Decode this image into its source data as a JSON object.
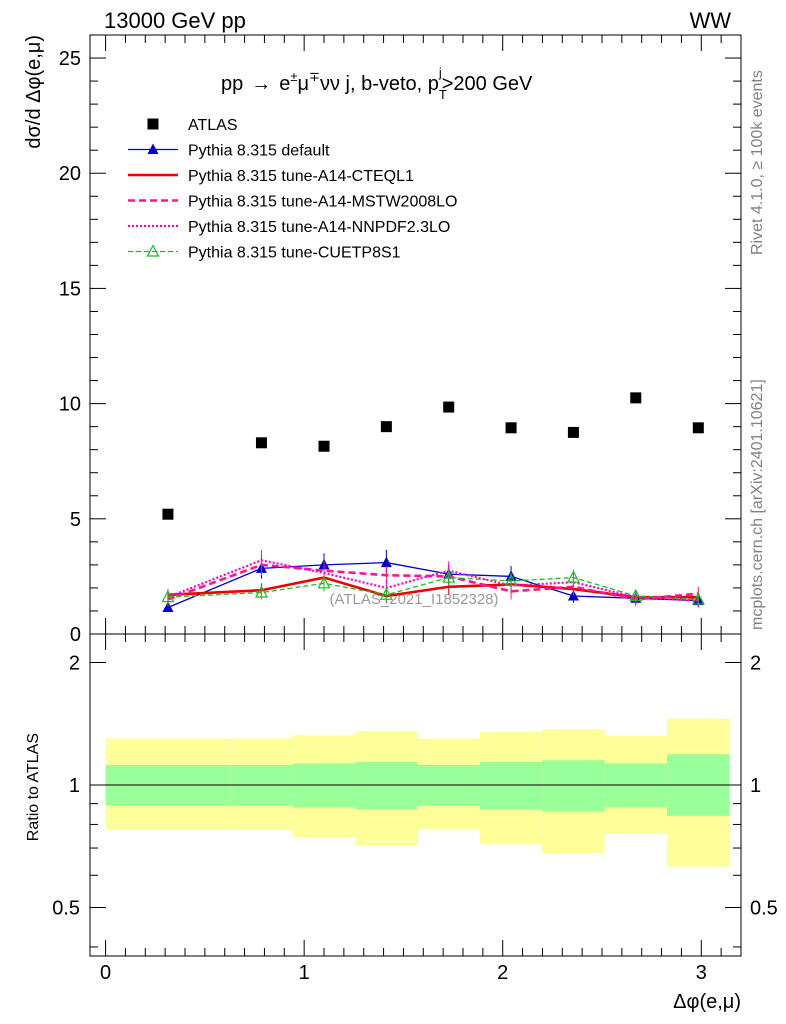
{
  "header": {
    "left": "13000 GeV pp",
    "right": "WW"
  },
  "side_labels": {
    "rivet": "Rivet 4.1.0, ≥ 100k events",
    "mcplots": "mcplots.cern.ch [arXiv:2401.10621]"
  },
  "watermark": "(ATLAS_2021_I1852328)",
  "colors": {
    "atlas": "#000000",
    "default": "#0000cc",
    "cteql1": "#ee0000",
    "mstw": "#ff1493",
    "nnpdf": "#ff00cc",
    "cuetp8s1": "#22bb22",
    "band_inner": "#99ff99",
    "band_outer": "#ffff99"
  },
  "chart_data": [
    {
      "type": "scatter",
      "title": "pp → e±μ∓νν j, b-veto, p_T^j>200 GeV",
      "title_parts": {
        "pp": "pp",
        "arrow": "→",
        "e": "e",
        "e_sup": "±",
        "mu": "μ",
        "mu_sup": "∓",
        "rest": "νν j, b-veto, p",
        "pt_sub": "T",
        "pt_sup": "j",
        "cut": ">200 GeV"
      },
      "ylabel": "dσ/d Δφ(e,μ)",
      "xlim": [
        -0.0785,
        3.2
      ],
      "ylim": [
        0,
        26
      ],
      "yticks": [
        {
          "v": 0,
          "label": "0"
        },
        {
          "v": 5,
          "label": "5"
        },
        {
          "v": 10,
          "label": "10"
        },
        {
          "v": 15,
          "label": "15"
        },
        {
          "v": 20,
          "label": "20"
        },
        {
          "v": 25,
          "label": "25"
        }
      ],
      "bin_edges": [
        0,
        0.628,
        0.942,
        1.257,
        1.571,
        1.885,
        2.199,
        2.513,
        2.827,
        3.142
      ],
      "x": [
        0.314,
        0.785,
        1.1,
        1.414,
        1.728,
        2.042,
        2.356,
        2.67,
        2.985
      ],
      "legend": [
        "ATLAS",
        "Pythia 8.315 default",
        "Pythia 8.315 tune-A14-CTEQL1",
        "Pythia 8.315 tune-A14-MSTW2008LO",
        "Pythia 8.315 tune-A14-NNPDF2.3LO",
        "Pythia 8.315 tune-CUETP8S1"
      ],
      "series": [
        {
          "name": "ATLAS",
          "key": "atlas",
          "values": [
            5.2,
            8.3,
            8.15,
            9.0,
            9.85,
            8.95,
            8.75,
            10.25,
            8.95
          ]
        },
        {
          "name": "Pythia 8.315 default",
          "key": "default",
          "values": [
            1.15,
            2.85,
            3.0,
            3.1,
            2.6,
            2.5,
            1.65,
            1.55,
            1.45
          ],
          "errors": [
            0.2,
            0.45,
            0.5,
            0.55,
            0.4,
            0.45,
            0.3,
            0.25,
            0.3
          ]
        },
        {
          "name": "Pythia 8.315 tune-A14-CTEQL1",
          "key": "cteql1",
          "values": [
            1.7,
            1.9,
            2.45,
            1.65,
            2.05,
            2.15,
            1.95,
            1.6,
            1.6
          ],
          "errors": [
            0.25,
            0.3,
            0.35,
            0.3,
            0.35,
            0.35,
            0.3,
            0.25,
            0.25
          ]
        },
        {
          "name": "Pythia 8.315 tune-A14-MSTW2008LO",
          "key": "mstw",
          "values": [
            1.5,
            3.0,
            2.75,
            2.55,
            2.5,
            1.85,
            2.05,
            1.5,
            1.75
          ],
          "errors": [
            0.3,
            0.45,
            0.4,
            0.4,
            0.4,
            0.35,
            0.35,
            0.3,
            0.3
          ]
        },
        {
          "name": "Pythia 8.315 tune-A14-NNPDF2.3LO",
          "key": "nnpdf",
          "values": [
            1.6,
            3.2,
            2.65,
            2.0,
            2.75,
            2.1,
            2.25,
            1.6,
            1.45
          ],
          "errors": [
            0.3,
            0.45,
            0.4,
            0.35,
            0.4,
            0.35,
            0.35,
            0.3,
            0.3
          ]
        },
        {
          "name": "Pythia 8.315 tune-CUETP8S1",
          "key": "cuetp8s1",
          "values": [
            1.6,
            1.8,
            2.2,
            1.7,
            2.45,
            2.3,
            2.45,
            1.65,
            1.5
          ],
          "errors": [
            0.25,
            0.3,
            0.35,
            0.3,
            0.35,
            0.35,
            0.35,
            0.25,
            0.25
          ]
        }
      ]
    },
    {
      "type": "area",
      "ylabel": "Ratio to ATLAS",
      "xlabel": "Δφ(e,μ)",
      "scale": "log",
      "xlim": [
        -0.0785,
        3.2
      ],
      "ylim": [
        0.38,
        2.35
      ],
      "xticks": [
        {
          "v": 0,
          "label": "0"
        },
        {
          "v": 1,
          "label": "1"
        },
        {
          "v": 2,
          "label": "2"
        },
        {
          "v": 3,
          "label": "3"
        }
      ],
      "yticks": [
        {
          "v": 0.5,
          "label": "0.5"
        },
        {
          "v": 1,
          "label": "1"
        },
        {
          "v": 2,
          "label": "2"
        }
      ],
      "reference_line": 1,
      "band_inner_lo": [
        0.89,
        0.89,
        0.88,
        0.87,
        0.89,
        0.87,
        0.86,
        0.88,
        0.84
      ],
      "band_inner_hi": [
        1.12,
        1.12,
        1.13,
        1.14,
        1.12,
        1.14,
        1.15,
        1.13,
        1.19
      ],
      "band_outer_lo": [
        0.775,
        0.775,
        0.745,
        0.71,
        0.78,
        0.715,
        0.68,
        0.76,
        0.63
      ],
      "band_outer_hi": [
        1.3,
        1.3,
        1.325,
        1.355,
        1.3,
        1.35,
        1.37,
        1.32,
        1.455
      ]
    }
  ]
}
